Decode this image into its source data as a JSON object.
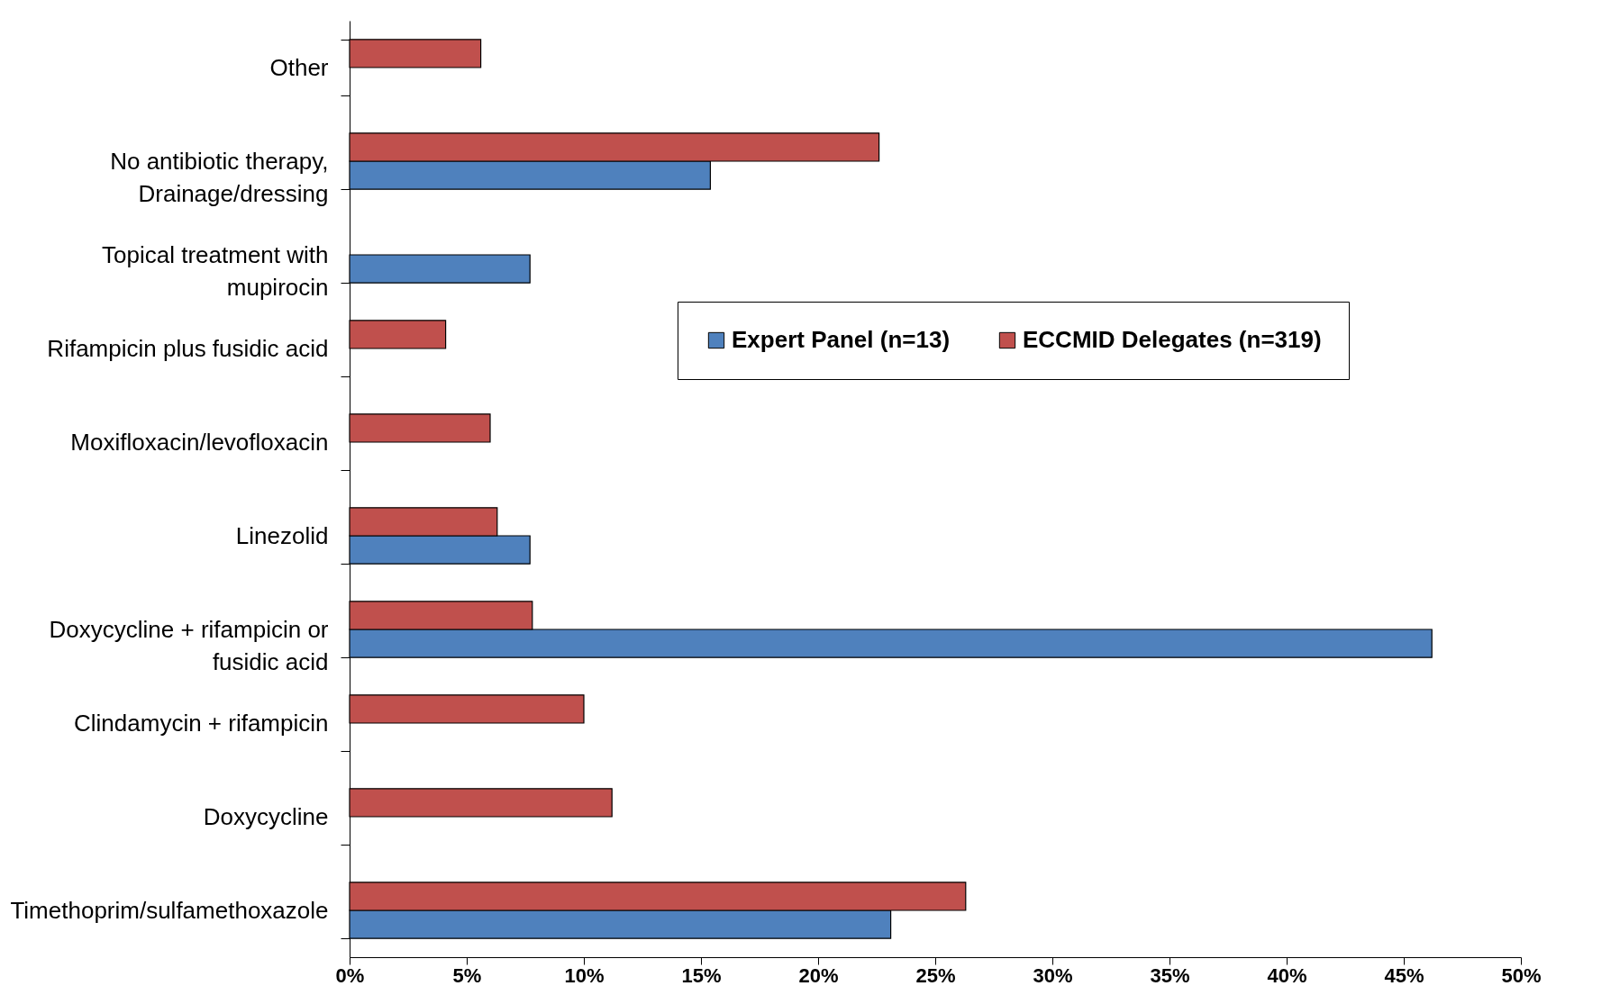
{
  "chart_data": {
    "type": "bar",
    "orientation": "horizontal",
    "categories": [
      "Other",
      "No antibiotic therapy,\nDrainage/dressing",
      "Topical treatment with\nmupirocin",
      "Rifampicin plus fusidic acid",
      "Moxifloxacin/levofloxacin",
      "Linezolid",
      "Doxycycline + rifampicin or\nfusidic acid",
      "Clindamycin + rifampicin",
      "Doxycycline",
      "Timethoprim/sulfamethoxazole"
    ],
    "series": [
      {
        "name": "Expert Panel (n=13)",
        "color": "#4f81bd",
        "values": [
          null,
          15.4,
          7.7,
          null,
          null,
          7.7,
          46.2,
          null,
          null,
          23.1
        ]
      },
      {
        "name": "ECCMID Delegates (n=319)",
        "color": "#c0504d",
        "values": [
          5.6,
          22.6,
          null,
          4.1,
          6.0,
          6.3,
          7.8,
          10.0,
          11.2,
          26.3
        ]
      }
    ],
    "xlim": [
      0,
      50
    ],
    "xticks": [
      {
        "value": 0,
        "label": "0%"
      },
      {
        "value": 5,
        "label": "5%"
      },
      {
        "value": 10,
        "label": "10%"
      },
      {
        "value": 15,
        "label": "15%"
      },
      {
        "value": 20,
        "label": "20%"
      },
      {
        "value": 25,
        "label": "25%"
      },
      {
        "value": 30,
        "label": "30%"
      },
      {
        "value": 35,
        "label": "35%"
      },
      {
        "value": 40,
        "label": "40%"
      },
      {
        "value": 45,
        "label": "45%"
      },
      {
        "value": 50,
        "label": "50%"
      }
    ],
    "grid": false,
    "legend": "right"
  }
}
